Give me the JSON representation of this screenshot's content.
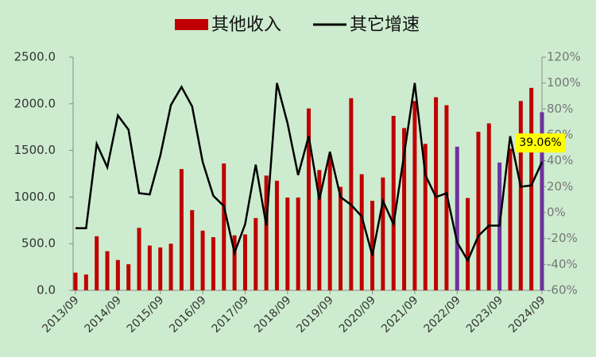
{
  "chart_data": {
    "type": "combo",
    "categories": [
      "2013/09",
      null,
      null,
      null,
      "2014/09",
      null,
      null,
      null,
      "2015/09",
      null,
      null,
      null,
      "2016/09",
      null,
      null,
      null,
      "2017/09",
      null,
      null,
      null,
      "2018/09",
      null,
      null,
      null,
      "2019/09",
      null,
      null,
      null,
      "2020/09",
      null,
      null,
      null,
      "2021/09",
      null,
      null,
      null,
      "2022/09",
      null,
      null,
      null,
      "2023/09",
      null,
      null,
      null,
      "2024/09"
    ],
    "series": [
      {
        "name": "其他收入",
        "type": "bar",
        "color": "#c00000",
        "colors": [
          "#c00000",
          "#c00000",
          "#c00000",
          "#c00000",
          "#c00000",
          "#c00000",
          "#c00000",
          "#c00000",
          "#c00000",
          "#c00000",
          "#c00000",
          "#c00000",
          "#c00000",
          "#c00000",
          "#c00000",
          "#c00000",
          "#c00000",
          "#c00000",
          "#c00000",
          "#c00000",
          "#c00000",
          "#c00000",
          "#c00000",
          "#c00000",
          "#c00000",
          "#c00000",
          "#c00000",
          "#c00000",
          "#c00000",
          "#c00000",
          "#c00000",
          "#c00000",
          "#c00000",
          "#c00000",
          "#c00000",
          "#c00000",
          "#7030a0",
          "#c00000",
          "#c00000",
          "#c00000",
          "#7030a0",
          "#c00000",
          "#c00000",
          "#c00000",
          "#7030a0"
        ],
        "values": [
          190,
          170,
          580,
          420,
          325,
          280,
          670,
          480,
          460,
          500,
          1300,
          860,
          640,
          570,
          1360,
          590,
          600,
          775,
          1230,
          1175,
          995,
          995,
          1950,
          1290,
          1450,
          1110,
          2060,
          1245,
          960,
          1210,
          1870,
          1740,
          2030,
          1570,
          2070,
          1985,
          1540,
          990,
          1700,
          1790,
          1370,
          1520,
          2030,
          2170,
          1910
        ]
      },
      {
        "name": "其它增速",
        "type": "line",
        "axis": "y2",
        "color": "#000000",
        "values": [
          -12,
          -12,
          53,
          35,
          75,
          64,
          15,
          14,
          44,
          83,
          97,
          82,
          39,
          13,
          5,
          -31,
          -9,
          37,
          -10,
          100,
          69,
          29,
          59,
          10,
          47,
          12,
          6,
          -3,
          -33,
          9,
          -9,
          45,
          100,
          29,
          12,
          15,
          -23,
          -37,
          -18,
          -10,
          -10,
          59,
          20,
          21,
          39.06
        ],
        "value_labels": [
          null,
          null,
          null,
          null,
          null,
          null,
          null,
          null,
          null,
          null,
          null,
          null,
          null,
          null,
          null,
          null,
          null,
          null,
          null,
          null,
          null,
          null,
          null,
          null,
          null,
          null,
          null,
          null,
          null,
          null,
          null,
          null,
          null,
          null,
          null,
          null,
          null,
          null,
          null,
          null,
          null,
          null,
          null,
          null,
          "39.06%"
        ]
      }
    ],
    "ylim": [
      0,
      2500
    ],
    "yticks": [
      {
        "value": 0,
        "label": "0.0"
      },
      {
        "value": 500,
        "label": "500.0"
      },
      {
        "value": 1000,
        "label": "1000.0"
      },
      {
        "value": 1500,
        "label": "1500.0"
      },
      {
        "value": 2000,
        "label": "2000.0"
      },
      {
        "value": 2500,
        "label": "2500.0"
      }
    ],
    "y2lim": [
      -60,
      120
    ],
    "y2ticks": [
      {
        "value": -60,
        "label": "-60%"
      },
      {
        "value": -40,
        "label": "-40%"
      },
      {
        "value": -20,
        "label": "-20%"
      },
      {
        "value": 0,
        "label": "0%"
      },
      {
        "value": 20,
        "label": "20%"
      },
      {
        "value": 40,
        "label": "40%"
      },
      {
        "value": 60,
        "label": "60%"
      },
      {
        "value": 80,
        "label": "80%"
      },
      {
        "value": 100,
        "label": "100%"
      },
      {
        "value": 120,
        "label": "120%"
      }
    ],
    "grid": false,
    "legend": "top"
  }
}
